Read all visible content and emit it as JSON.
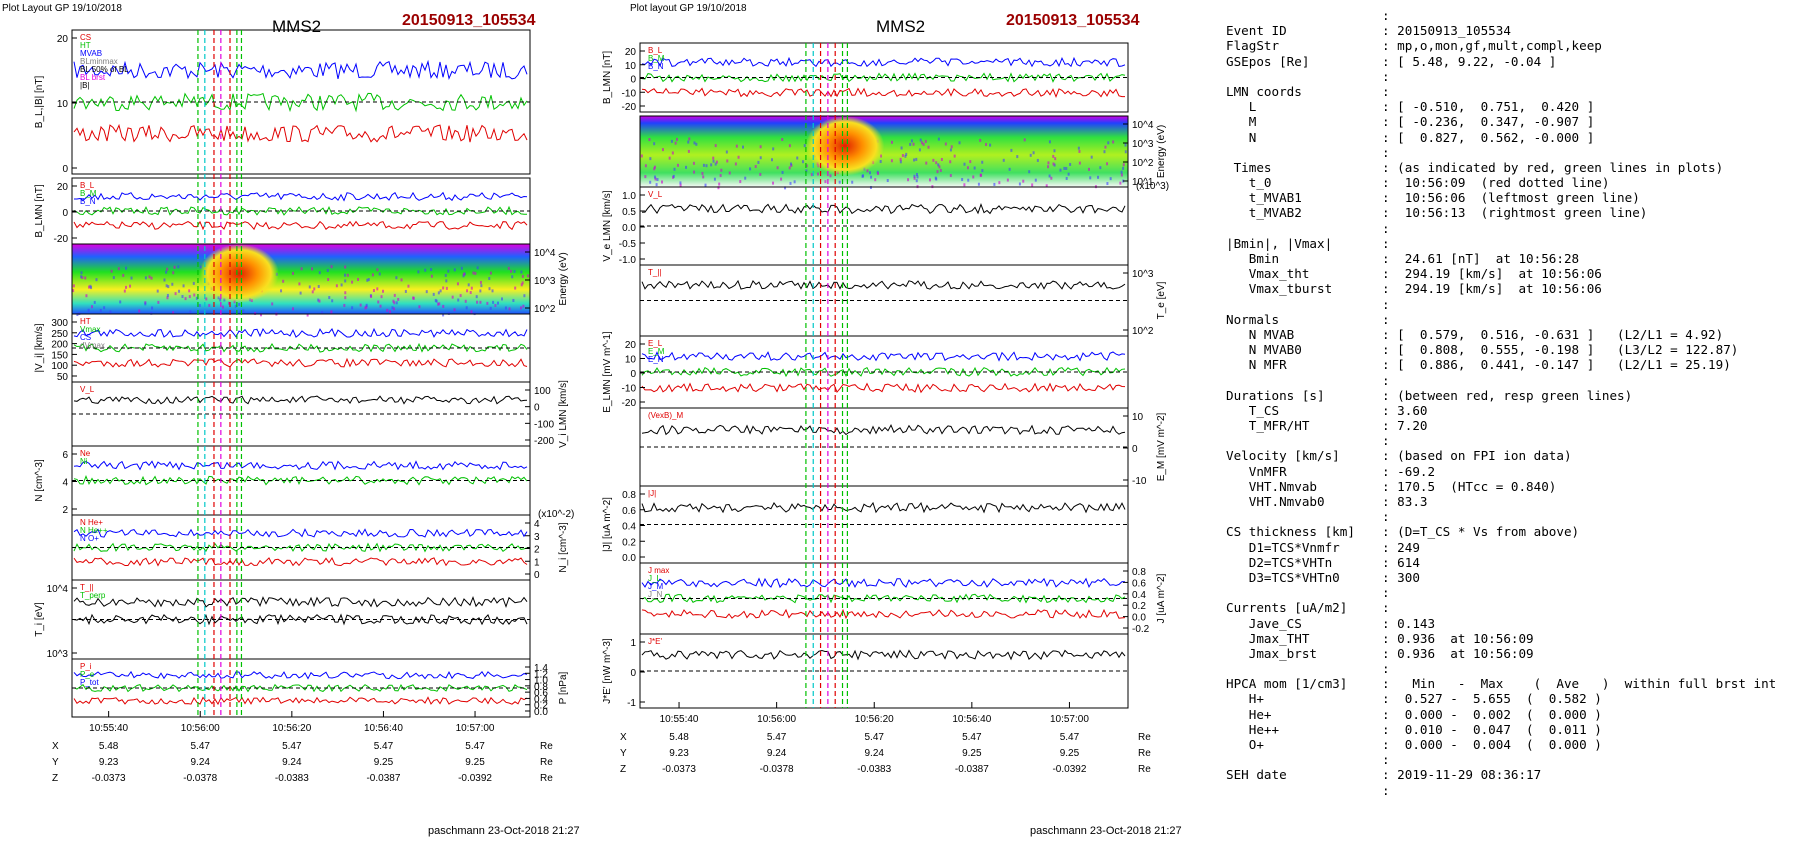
{
  "panelLeft": {
    "header": "Plot Layout GP 19/10/2018",
    "spacecraft": "MMS2",
    "event": "20150913_105534",
    "footer": "paschmann 23-Oct-2018 21:27",
    "time_ticks": [
      "10:55:40",
      "10:56:00",
      "10:56:20",
      "10:56:40",
      "10:57:00"
    ],
    "pos_rows": [
      {
        "label": "X",
        "values": [
          "5.48",
          "5.47",
          "5.47",
          "5.47",
          "5.47"
        ],
        "unit": "Re"
      },
      {
        "label": "Y",
        "values": [
          "9.23",
          "9.24",
          "9.24",
          "9.25",
          "9.25"
        ],
        "unit": "Re"
      },
      {
        "label": "Z",
        "values": [
          "-0.0373",
          "-0.0378",
          "-0.0383",
          "-0.0387",
          "-0.0392"
        ],
        "unit": "Re"
      }
    ],
    "panels": [
      {
        "ylabel": "B_L,|B| [nT]",
        "ticks_left": [
          "20",
          "10",
          "0"
        ],
        "legend": [
          "CS",
          "HT",
          "MVAB",
          "BLminmax",
          "BL 50% of BL",
          "BL brst",
          "|B|"
        ]
      },
      {
        "ylabel": "B_LMN [nT]",
        "ticks_left": [
          "20",
          "0",
          "-20"
        ],
        "legend": [
          "B_L",
          "B_M",
          "B_N"
        ]
      },
      {
        "ylabel_right": "Energy (eV)",
        "ticks_right": [
          "10^4",
          "10^3",
          "10^2"
        ]
      },
      {
        "ylabel": "|V_i| [km/s]",
        "ticks_left": [
          "300",
          "250",
          "200",
          "150",
          "100",
          "50"
        ],
        "legend": [
          "HT",
          "Vmax",
          "CS",
          "dVmax"
        ]
      },
      {
        "ylabel_right": "V_i LMN [km/s]",
        "ticks_right": [
          "100",
          "0",
          "-100",
          "-200"
        ],
        "legend": [
          "V_L"
        ]
      },
      {
        "ylabel": "N [cm^-3]",
        "ticks_left": [
          "6",
          "4",
          "2"
        ],
        "legend": [
          "Ne",
          "Ni"
        ]
      },
      {
        "ylabel_right": "N_i [cm^-3]",
        "ticks_right": [
          "4",
          "3",
          "2",
          "1",
          "0"
        ],
        "scale": "(x10^-2)",
        "legend": [
          "N He+",
          "N He++",
          "N O+"
        ]
      },
      {
        "ylabel": "T_i [eV]",
        "ticks_left": [
          "10^4",
          "10^3"
        ],
        "legend": [
          "T_||",
          "T_perp"
        ]
      },
      {
        "ylabel_right": "P [nPa]",
        "ticks_right": [
          "1.4",
          "1.2",
          "1.0",
          "0.8",
          "0.6",
          "0.4",
          "0.2",
          "0.0"
        ],
        "legend": [
          "P_i",
          "P_e",
          "P_tot"
        ]
      }
    ]
  },
  "panelRight": {
    "header": "Plot layout GP 19/10/2018",
    "spacecraft": "MMS2",
    "event": "20150913_105534",
    "footer": "paschmann 23-Oct-2018 21:27",
    "time_ticks": [
      "10:55:40",
      "10:56:00",
      "10:56:20",
      "10:56:40",
      "10:57:00"
    ],
    "pos_rows": [
      {
        "label": "X",
        "values": [
          "5.48",
          "5.47",
          "5.47",
          "5.47",
          "5.47"
        ],
        "unit": "Re"
      },
      {
        "label": "Y",
        "values": [
          "9.23",
          "9.24",
          "9.24",
          "9.25",
          "9.25"
        ],
        "unit": "Re"
      },
      {
        "label": "Z",
        "values": [
          "-0.0373",
          "-0.0378",
          "-0.0383",
          "-0.0387",
          "-0.0392"
        ],
        "unit": "Re"
      }
    ],
    "panels": [
      {
        "ylabel": "B_LMN [nT]",
        "ticks_left": [
          "20",
          "10",
          "0",
          "-10",
          "-20"
        ],
        "legend": [
          "B_L",
          "B_M",
          "B_N"
        ]
      },
      {
        "ylabel_right": "Energy (eV)",
        "ticks_right": [
          "10^4",
          "10^3",
          "10^2",
          "10^1"
        ]
      },
      {
        "ylabel": "V_e LMN [km/s]",
        "ticks_left": [
          "1.0",
          "0.5",
          "0.0",
          "-0.5",
          "-1.0"
        ],
        "scale": "(x10^3)",
        "legend": [
          "V_L"
        ]
      },
      {
        "ylabel_right": "T_e [eV]",
        "ticks_right": [
          "10^3",
          "10^2"
        ],
        "legend": [
          "T_||"
        ]
      },
      {
        "ylabel": "E_LMN [mV m^-1]",
        "ticks_left": [
          "20",
          "10",
          "0",
          "-10",
          "-20"
        ],
        "legend": [
          "E_L",
          "E_M",
          "E_N"
        ]
      },
      {
        "ylabel_right": "E_M [mV m^-2]",
        "ticks_right": [
          "10",
          "0",
          "-10"
        ],
        "legend": [
          "(VexB)_M"
        ]
      },
      {
        "ylabel": "|J| [uA m^-2]",
        "ticks_left": [
          "0.8",
          "0.6",
          "0.4",
          "0.2",
          "0.0"
        ],
        "legend": [
          "|J|"
        ]
      },
      {
        "ylabel_right": "J [uA m^-2]",
        "ticks_right": [
          "0.8",
          "0.6",
          "0.4",
          "0.2",
          "0.0",
          "-0.2"
        ],
        "legend": [
          "J max",
          "J_L",
          "J_M",
          "J_N"
        ]
      },
      {
        "ylabel": "J*E' [nW m^-3]",
        "ticks_left": [
          "1",
          "0",
          "-1"
        ],
        "legend": [
          "J*E'"
        ]
      }
    ]
  },
  "info": [
    [
      "",
      ":"
    ],
    [
      "Event ID",
      ": 20150913_105534"
    ],
    [
      "FlagStr",
      ": mp,o,mon,gf,mult,compl,keep"
    ],
    [
      "GSEpos [Re]",
      ": [ 5.48, 9.22, -0.04 ]"
    ],
    [
      "",
      ":"
    ],
    [
      "LMN coords",
      ":"
    ],
    [
      "   L",
      ": [ -0.510,  0.751,  0.420 ]"
    ],
    [
      "   M",
      ": [ -0.236,  0.347, -0.907 ]"
    ],
    [
      "   N",
      ": [  0.827,  0.562, -0.000 ]"
    ],
    [
      "",
      ":"
    ],
    [
      " Times",
      ": (as indicated by red, green lines in plots)"
    ],
    [
      "   t_0",
      ":  10:56:09  (red dotted line)"
    ],
    [
      "   t_MVAB1",
      ":  10:56:06  (leftmost green line)"
    ],
    [
      "   t_MVAB2",
      ":  10:56:13  (rightmost green line)"
    ],
    [
      "",
      ":"
    ],
    [
      "|Bmin|, |Vmax|",
      ":"
    ],
    [
      "   Bmin",
      ":  24.61 [nT]  at 10:56:28"
    ],
    [
      "   Vmax_tht",
      ":  294.19 [km/s]  at 10:56:06"
    ],
    [
      "   Vmax_tburst",
      ":  294.19 [km/s]  at 10:56:06"
    ],
    [
      "",
      ":"
    ],
    [
      "Normals",
      ":"
    ],
    [
      "   N MVAB",
      ": [  0.579,  0.516, -0.631 ]   (L2/L1 = 4.92)"
    ],
    [
      "   N MVAB0",
      ": [  0.808,  0.555, -0.198 ]   (L3/L2 = 122.87)"
    ],
    [
      "   N MFR",
      ": [  0.886,  0.441, -0.147 ]   (L2/L1 = 25.19)"
    ],
    [
      "",
      ":"
    ],
    [
      "Durations [s]",
      ": (between red, resp green lines)"
    ],
    [
      "   T_CS",
      ": 3.60"
    ],
    [
      "   T_MFR/HT",
      ": 7.20"
    ],
    [
      "",
      ":"
    ],
    [
      "Velocity [km/s]",
      ": (based on FPI ion data)"
    ],
    [
      "   VnMFR",
      ": -69.2"
    ],
    [
      "   VHT.Nmvab",
      ": 170.5  (HTcc = 0.840)"
    ],
    [
      "   VHT.Nmvab0",
      ": 83.3"
    ],
    [
      "",
      ":"
    ],
    [
      "CS thickness [km]",
      ": (D=T_CS * Vs from above)"
    ],
    [
      "   D1=TCS*Vnmfr",
      ": 249"
    ],
    [
      "   D2=TCS*VHTn",
      ": 614"
    ],
    [
      "   D3=TCS*VHTn0",
      ": 300"
    ],
    [
      "",
      ":"
    ],
    [
      "Currents [uA/m2]",
      ":"
    ],
    [
      "   Jave_CS",
      ": 0.143"
    ],
    [
      "   Jmax_THT",
      ": 0.936  at 10:56:09"
    ],
    [
      "   Jmax_brst",
      ": 0.936  at 10:56:09"
    ],
    [
      "",
      ":"
    ],
    [
      "HPCA mom [1/cm3]",
      ":   Min   -  Max    (  Ave   )  within full brst int"
    ],
    [
      "   H+",
      ":  0.527 -  5.655  (  0.582 )"
    ],
    [
      "   He+",
      ":  0.000 -  0.002  (  0.000 )"
    ],
    [
      "   He++",
      ":  0.010 -  0.047  (  0.011 )"
    ],
    [
      "   O+",
      ":  0.000 -  0.004  (  0.000 )"
    ],
    [
      "",
      ":"
    ],
    [
      "SEH date",
      ": 2019-11-29 08:36:17"
    ],
    [
      "",
      ":"
    ]
  ],
  "colors": {
    "red": "#e00000",
    "green": "#00c000",
    "blue": "#0000ff",
    "black": "#000000",
    "gray": "#7f7f7f",
    "magenta": "#e000e0",
    "cyan": "#00c8c8",
    "maroon": "#9b0000"
  }
}
